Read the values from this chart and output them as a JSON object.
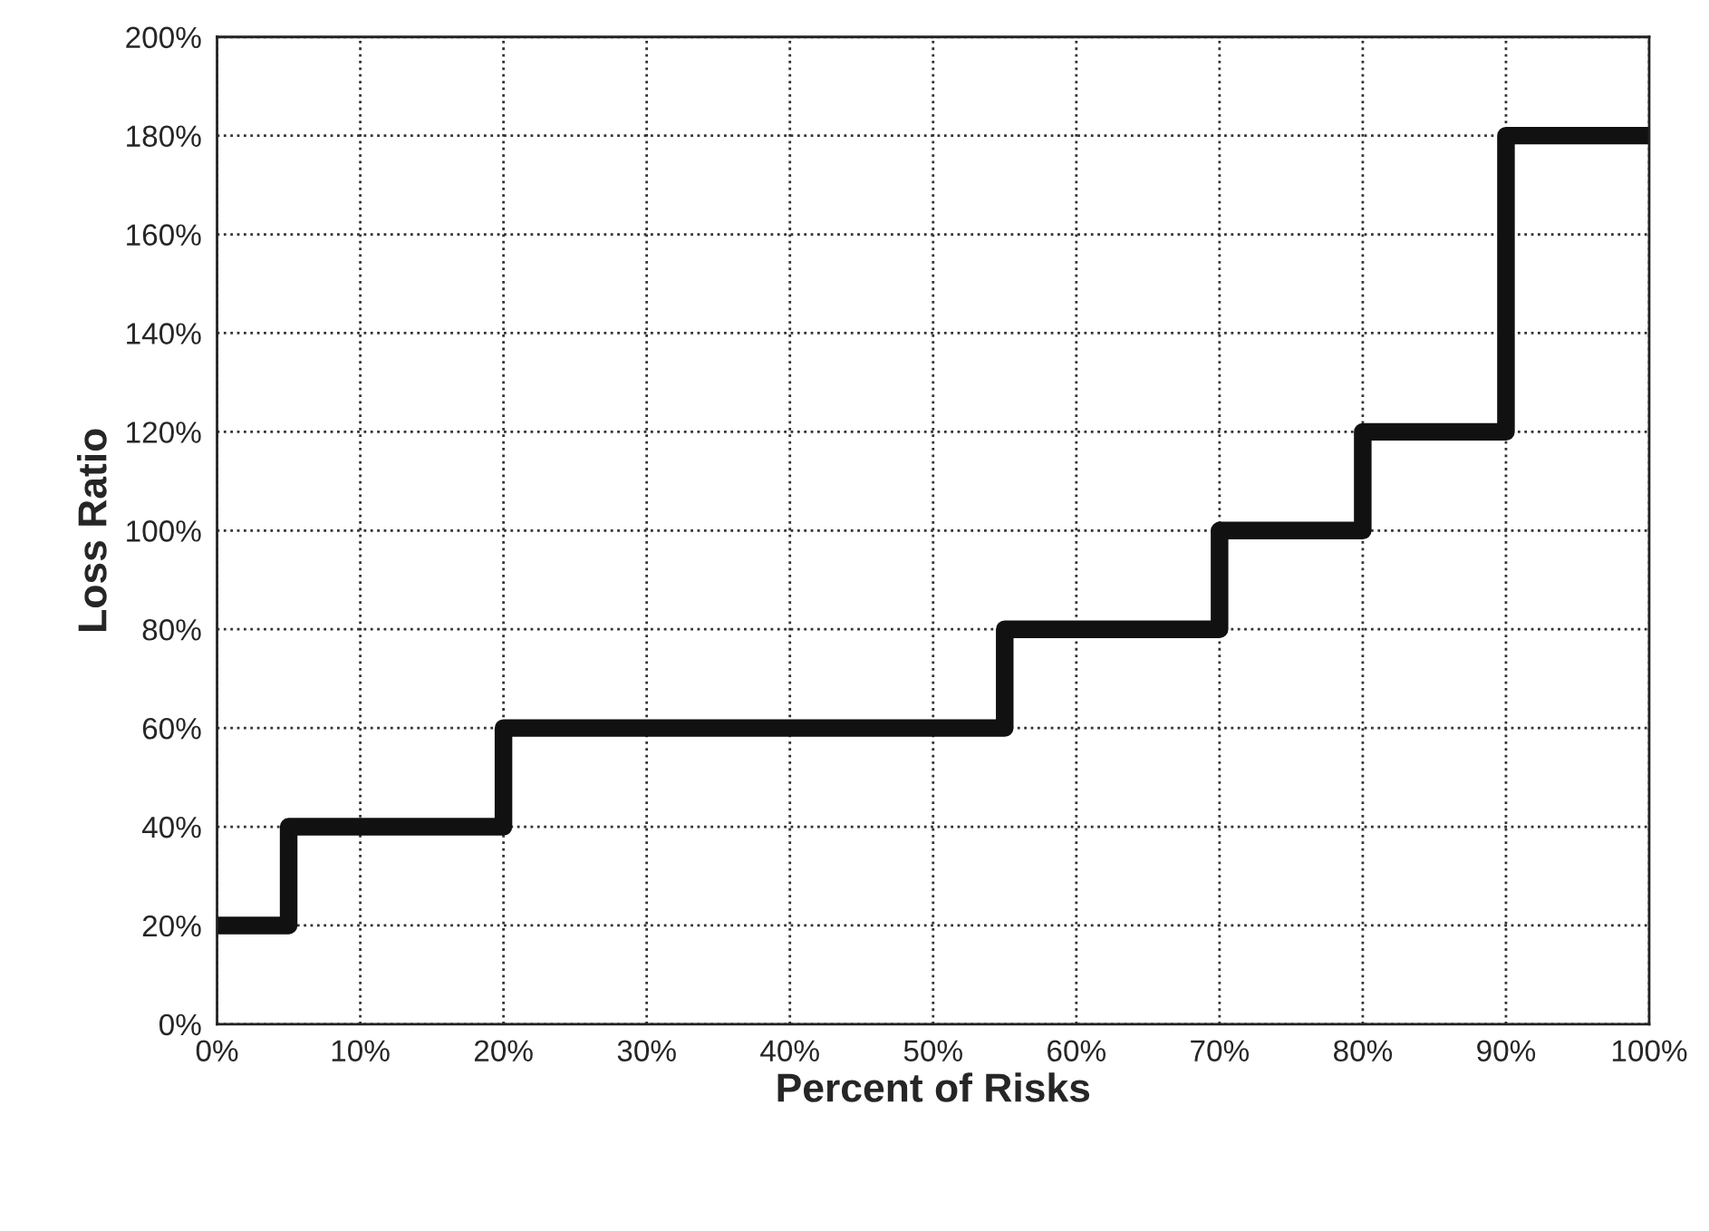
{
  "chart_data": {
    "type": "step",
    "xlabel": "Percent of Risks",
    "ylabel": "Loss Ratio",
    "x": [
      0,
      5,
      20,
      55,
      70,
      80,
      90,
      100
    ],
    "series": [
      {
        "color": "#111111",
        "values": [
          20,
          40,
          60,
          80,
          100,
          120,
          180,
          180
        ]
      }
    ],
    "xlim": [
      0,
      100
    ],
    "xticks": [
      {
        "value": 0,
        "label": "0%"
      },
      {
        "value": 10,
        "label": "10%"
      },
      {
        "value": 20,
        "label": "20%"
      },
      {
        "value": 30,
        "label": "30%"
      },
      {
        "value": 40,
        "label": "40%"
      },
      {
        "value": 50,
        "label": "50%"
      },
      {
        "value": 60,
        "label": "60%"
      },
      {
        "value": 70,
        "label": "70%"
      },
      {
        "value": 80,
        "label": "80%"
      },
      {
        "value": 90,
        "label": "90%"
      },
      {
        "value": 100,
        "label": "100%"
      }
    ],
    "ylim": [
      0,
      200
    ],
    "yticks": [
      {
        "value": 0,
        "label": "0%"
      },
      {
        "value": 20,
        "label": "20%"
      },
      {
        "value": 40,
        "label": "40%"
      },
      {
        "value": 60,
        "label": "60%"
      },
      {
        "value": 80,
        "label": "80%"
      },
      {
        "value": 100,
        "label": "100%"
      },
      {
        "value": 120,
        "label": "120%"
      },
      {
        "value": 140,
        "label": "140%"
      },
      {
        "value": 160,
        "label": "160%"
      },
      {
        "value": 180,
        "label": "180%"
      },
      {
        "value": 200,
        "label": "200%"
      }
    ],
    "grid": true
  }
}
